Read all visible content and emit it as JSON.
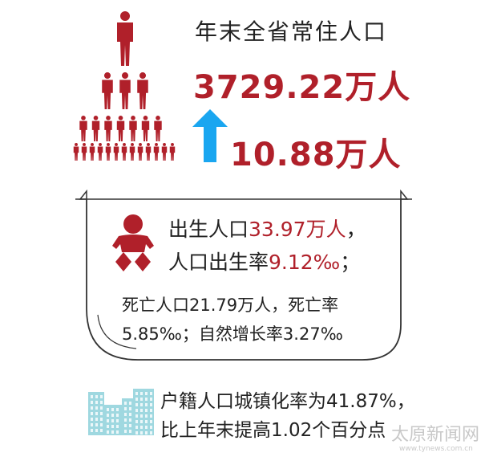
{
  "header": {
    "title": "年末全省常住人口",
    "population": "3729.22万人",
    "increase": "10.88万人",
    "increase_icon": "arrow-up-icon"
  },
  "births": {
    "label1": "出生人口",
    "value1": "33.97万人",
    "sep1": "，",
    "label2": "人口出生率",
    "value2": "9.12‰",
    "sep2": "；",
    "icon": "baby-icon"
  },
  "deaths": {
    "line1": "死亡人口21.79万人，死亡率",
    "line2": "5.85‰；自然增长率3.27‰"
  },
  "urbanization": {
    "line1": "户籍人口城镇化率为41.87%，",
    "line2": "比上年末提高1.02个百分点",
    "icon": "buildings-icon"
  },
  "watermark": {
    "name": "太原新闻网",
    "url": "www.tynews.com.cn"
  },
  "colors": {
    "accent_red": "#b0202a",
    "arrow_blue": "#1aa6f0",
    "building_teal": "#9fd8e0"
  }
}
